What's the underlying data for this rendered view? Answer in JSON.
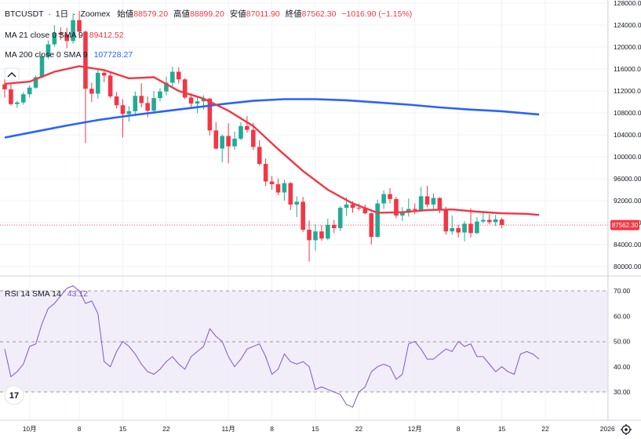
{
  "header": {
    "symbol": "BTCUSDT",
    "interval": "1日",
    "exchange": "Zoomex",
    "open_label": "始値",
    "open_value": "88579.20",
    "high_label": "高値",
    "high_value": "88899.20",
    "low_label": "安値",
    "low_value": "87011.90",
    "close_label": "終値",
    "close_value": "87562.30",
    "change": "−1016.90 (−1.15%)"
  },
  "legend": {
    "ma21": {
      "label": "MA 21 close 0 SMA 9",
      "value": "89412.52"
    },
    "ma200": {
      "label": "MA 200 close 0 SMA 9",
      "value": "107728.27"
    },
    "rsi": {
      "label": "RSI 14 SMA 14",
      "value": "43.12"
    }
  },
  "last_price_label": "87562.30",
  "logo_text": "17",
  "settings_icon": "gear-icon",
  "colors": {
    "up": "#22ab94",
    "down": "#f23645",
    "ma21": "#f23645",
    "ma200": "#2962ff",
    "rsi": "#7e57c2",
    "rsi_band": "#ede7f6"
  },
  "chart_data": [
    {
      "type": "candlestick",
      "title": "BTCUSDT · 1日 · Zoomex",
      "xlabel": "",
      "ylabel": "",
      "ylim": [
        78000,
        128500
      ],
      "price_ticks": [
        "128000.00",
        "124000.00",
        "120000.00",
        "116000.00",
        "112000.00",
        "108000.00",
        "104000.00",
        "100000.00",
        "96000.00",
        "92000.00",
        "88000.00",
        "84000.00",
        "80000.00"
      ],
      "x_ticks": [
        {
          "label": "10月",
          "day": 4
        },
        {
          "label": "8",
          "day": 12
        },
        {
          "label": "15",
          "day": 19
        },
        {
          "label": "22",
          "day": 26
        },
        {
          "label": "11月",
          "day": 36
        },
        {
          "label": "8",
          "day": 43
        },
        {
          "label": "15",
          "day": 50
        },
        {
          "label": "22",
          "day": 57
        },
        {
          "label": "12月",
          "day": 66
        },
        {
          "label": "8",
          "day": 73
        },
        {
          "label": "15",
          "day": 80
        },
        {
          "label": "22",
          "day": 87
        },
        {
          "label": "2026",
          "day": 97
        }
      ],
      "candles": [
        [
          113200,
          114900,
          110800,
          112300
        ],
        [
          112300,
          113200,
          109300,
          109600
        ],
        [
          109600,
          110200,
          108900,
          109900
        ],
        [
          109900,
          111800,
          109500,
          111400
        ],
        [
          111400,
          113000,
          110800,
          112600
        ],
        [
          112600,
          114800,
          112400,
          114500
        ],
        [
          114500,
          118900,
          114300,
          118300
        ],
        [
          118300,
          121200,
          117900,
          120500
        ],
        [
          120500,
          124000,
          120100,
          122600
        ],
        [
          122600,
          123600,
          121300,
          122300
        ],
        [
          122300,
          123500,
          119800,
          121100
        ],
        [
          121100,
          126100,
          120600,
          124900
        ],
        [
          124900,
          126600,
          121600,
          122800
        ],
        [
          122800,
          123000,
          102500,
          112400
        ],
        [
          112400,
          113500,
          110000,
          111500
        ],
        [
          111500,
          115800,
          110600,
          115300
        ],
        [
          115300,
          115700,
          113600,
          114800
        ],
        [
          114800,
          115300,
          110700,
          111000
        ],
        [
          111000,
          111800,
          108800,
          109400
        ],
        [
          109400,
          110500,
          103500,
          107800
        ],
        [
          107800,
          109200,
          106400,
          108300
        ],
        [
          108300,
          111900,
          107400,
          111100
        ],
        [
          111100,
          113400,
          109000,
          109800
        ],
        [
          109800,
          111000,
          107200,
          108400
        ],
        [
          108400,
          112000,
          108000,
          110700
        ],
        [
          110700,
          112500,
          110100,
          111900
        ],
        [
          111900,
          114600,
          111200,
          113500
        ],
        [
          113500,
          116400,
          112800,
          115500
        ],
        [
          115500,
          116300,
          113400,
          114100
        ],
        [
          114100,
          114300,
          110500,
          110800
        ],
        [
          110800,
          111600,
          109000,
          109700
        ],
        [
          109700,
          111000,
          107900,
          110100
        ],
        [
          110100,
          111200,
          108600,
          110600
        ],
        [
          110600,
          110700,
          103900,
          104800
        ],
        [
          104800,
          106300,
          101300,
          101500
        ],
        [
          101500,
          104100,
          99000,
          103800
        ],
        [
          103800,
          106100,
          98800,
          101900
        ],
        [
          101900,
          104600,
          101300,
          103300
        ],
        [
          103300,
          106300,
          103000,
          105600
        ],
        [
          105600,
          107400,
          104400,
          104900
        ],
        [
          104900,
          106200,
          101200,
          101800
        ],
        [
          101800,
          103000,
          98400,
          98700
        ],
        [
          98700,
          99700,
          94700,
          95500
        ],
        [
          95500,
          96500,
          94000,
          95000
        ],
        [
          95000,
          96000,
          93000,
          93500
        ],
        [
          93500,
          95800,
          92000,
          95200
        ],
        [
          95200,
          95400,
          90300,
          91300
        ],
        [
          91300,
          92800,
          89000,
          91800
        ],
        [
          91800,
          92700,
          86300,
          86700
        ],
        [
          86700,
          88400,
          80900,
          84800
        ],
        [
          84800,
          87700,
          82900,
          86400
        ],
        [
          86400,
          87500,
          84700,
          85100
        ],
        [
          85100,
          88700,
          84800,
          87600
        ],
        [
          87600,
          88500,
          86100,
          87000
        ],
        [
          87000,
          91000,
          86500,
          90700
        ],
        [
          90700,
          92600,
          89200,
          91300
        ],
        [
          91300,
          91900,
          89800,
          90700
        ],
        [
          90700,
          91500,
          90200,
          90600
        ],
        [
          90600,
          91300,
          89500,
          89700
        ],
        [
          89700,
          89900,
          84000,
          85400
        ],
        [
          85400,
          92200,
          85300,
          91500
        ],
        [
          91500,
          93900,
          90500,
          93200
        ],
        [
          93200,
          94300,
          91500,
          92300
        ],
        [
          92300,
          92700,
          88800,
          89300
        ],
        [
          89300,
          90800,
          88300,
          89800
        ],
        [
          89800,
          92400,
          89100,
          90500
        ],
        [
          90500,
          91500,
          89600,
          90300
        ],
        [
          90300,
          94500,
          90000,
          92800
        ],
        [
          92800,
          94700,
          90800,
          91300
        ],
        [
          91300,
          93300,
          90200,
          92500
        ],
        [
          92500,
          92600,
          89700,
          90300
        ],
        [
          90300,
          90900,
          85800,
          86400
        ],
        [
          86400,
          89300,
          85800,
          87000
        ],
        [
          87000,
          87600,
          85300,
          86200
        ],
        [
          86200,
          88300,
          84600,
          87800
        ],
        [
          87800,
          90600,
          85300,
          86100
        ],
        [
          86100,
          89000,
          85900,
          88200
        ],
        [
          88200,
          89800,
          87900,
          88500
        ],
        [
          88500,
          89500,
          87700,
          88100
        ],
        [
          88100,
          89400,
          87400,
          88600
        ],
        [
          88580,
          88900,
          87010,
          87562
        ]
      ],
      "series": [
        {
          "name": "MA 21 close 0 SMA 9",
          "color": "#f23645",
          "x": [
            0,
            4,
            8,
            12,
            16,
            20,
            24,
            28,
            32,
            36,
            40,
            44,
            48,
            52,
            56,
            60,
            64,
            68,
            72,
            76,
            80,
            84,
            86
          ],
          "values": [
            113300,
            113700,
            115500,
            116500,
            115800,
            114300,
            114500,
            112000,
            110600,
            108400,
            105600,
            101400,
            97400,
            94000,
            91500,
            89800,
            89900,
            90300,
            90400,
            90000,
            89700,
            89600,
            89400
          ]
        },
        {
          "name": "MA 200 close 0 SMA 9",
          "color": "#2962ff",
          "x": [
            0,
            5,
            10,
            15,
            20,
            25,
            30,
            35,
            40,
            45,
            50,
            55,
            60,
            65,
            70,
            75,
            80,
            86
          ],
          "values": [
            103500,
            104600,
            105700,
            106700,
            107500,
            108200,
            108900,
            109600,
            110200,
            110500,
            110500,
            110300,
            109900,
            109500,
            109000,
            108600,
            108300,
            107700
          ]
        }
      ]
    },
    {
      "type": "line",
      "title": "RSI 14 SMA 14",
      "xlabel": "",
      "ylabel": "",
      "ylim": [
        20,
        80
      ],
      "band": [
        30,
        70
      ],
      "midline": 50,
      "y_ticks": [
        "70.00",
        "60.00",
        "50.00",
        "40.00",
        "30.00"
      ],
      "series": [
        {
          "name": "RSI 14",
          "color": "#7e57c2",
          "x": [
            0,
            1,
            2,
            3,
            4,
            5,
            6,
            7,
            8,
            9,
            10,
            11,
            12,
            13,
            14,
            15,
            16,
            17,
            18,
            19,
            20,
            21,
            22,
            23,
            24,
            25,
            26,
            27,
            28,
            29,
            30,
            31,
            32,
            33,
            34,
            35,
            36,
            37,
            38,
            39,
            40,
            41,
            42,
            43,
            44,
            45,
            46,
            47,
            48,
            49,
            50,
            51,
            52,
            53,
            54,
            55,
            56,
            57,
            58,
            59,
            60,
            61,
            62,
            63,
            64,
            65,
            66,
            67,
            68,
            69,
            70,
            71,
            72,
            73,
            74,
            75,
            76,
            77,
            78,
            79,
            80,
            81,
            82,
            83,
            84,
            85,
            86
          ],
          "values": [
            47,
            36,
            38,
            41,
            48,
            49,
            57,
            63,
            65,
            68,
            71,
            72,
            70,
            65,
            66,
            61,
            42,
            40,
            46,
            50,
            48,
            45,
            41,
            38,
            37,
            39,
            42,
            44,
            41,
            39,
            44,
            46,
            48,
            55,
            52,
            50,
            44,
            40,
            43,
            47,
            48,
            49,
            44,
            37,
            39,
            45,
            42,
            41,
            42,
            40,
            31,
            32,
            31,
            30,
            29,
            25,
            24,
            30,
            32,
            38,
            40,
            41,
            40,
            35,
            37,
            49,
            50,
            47,
            43,
            43,
            45,
            47,
            46,
            50,
            48,
            49,
            44,
            44,
            41,
            38,
            40,
            38,
            37,
            45,
            46,
            45,
            43
          ]
        }
      ]
    }
  ]
}
